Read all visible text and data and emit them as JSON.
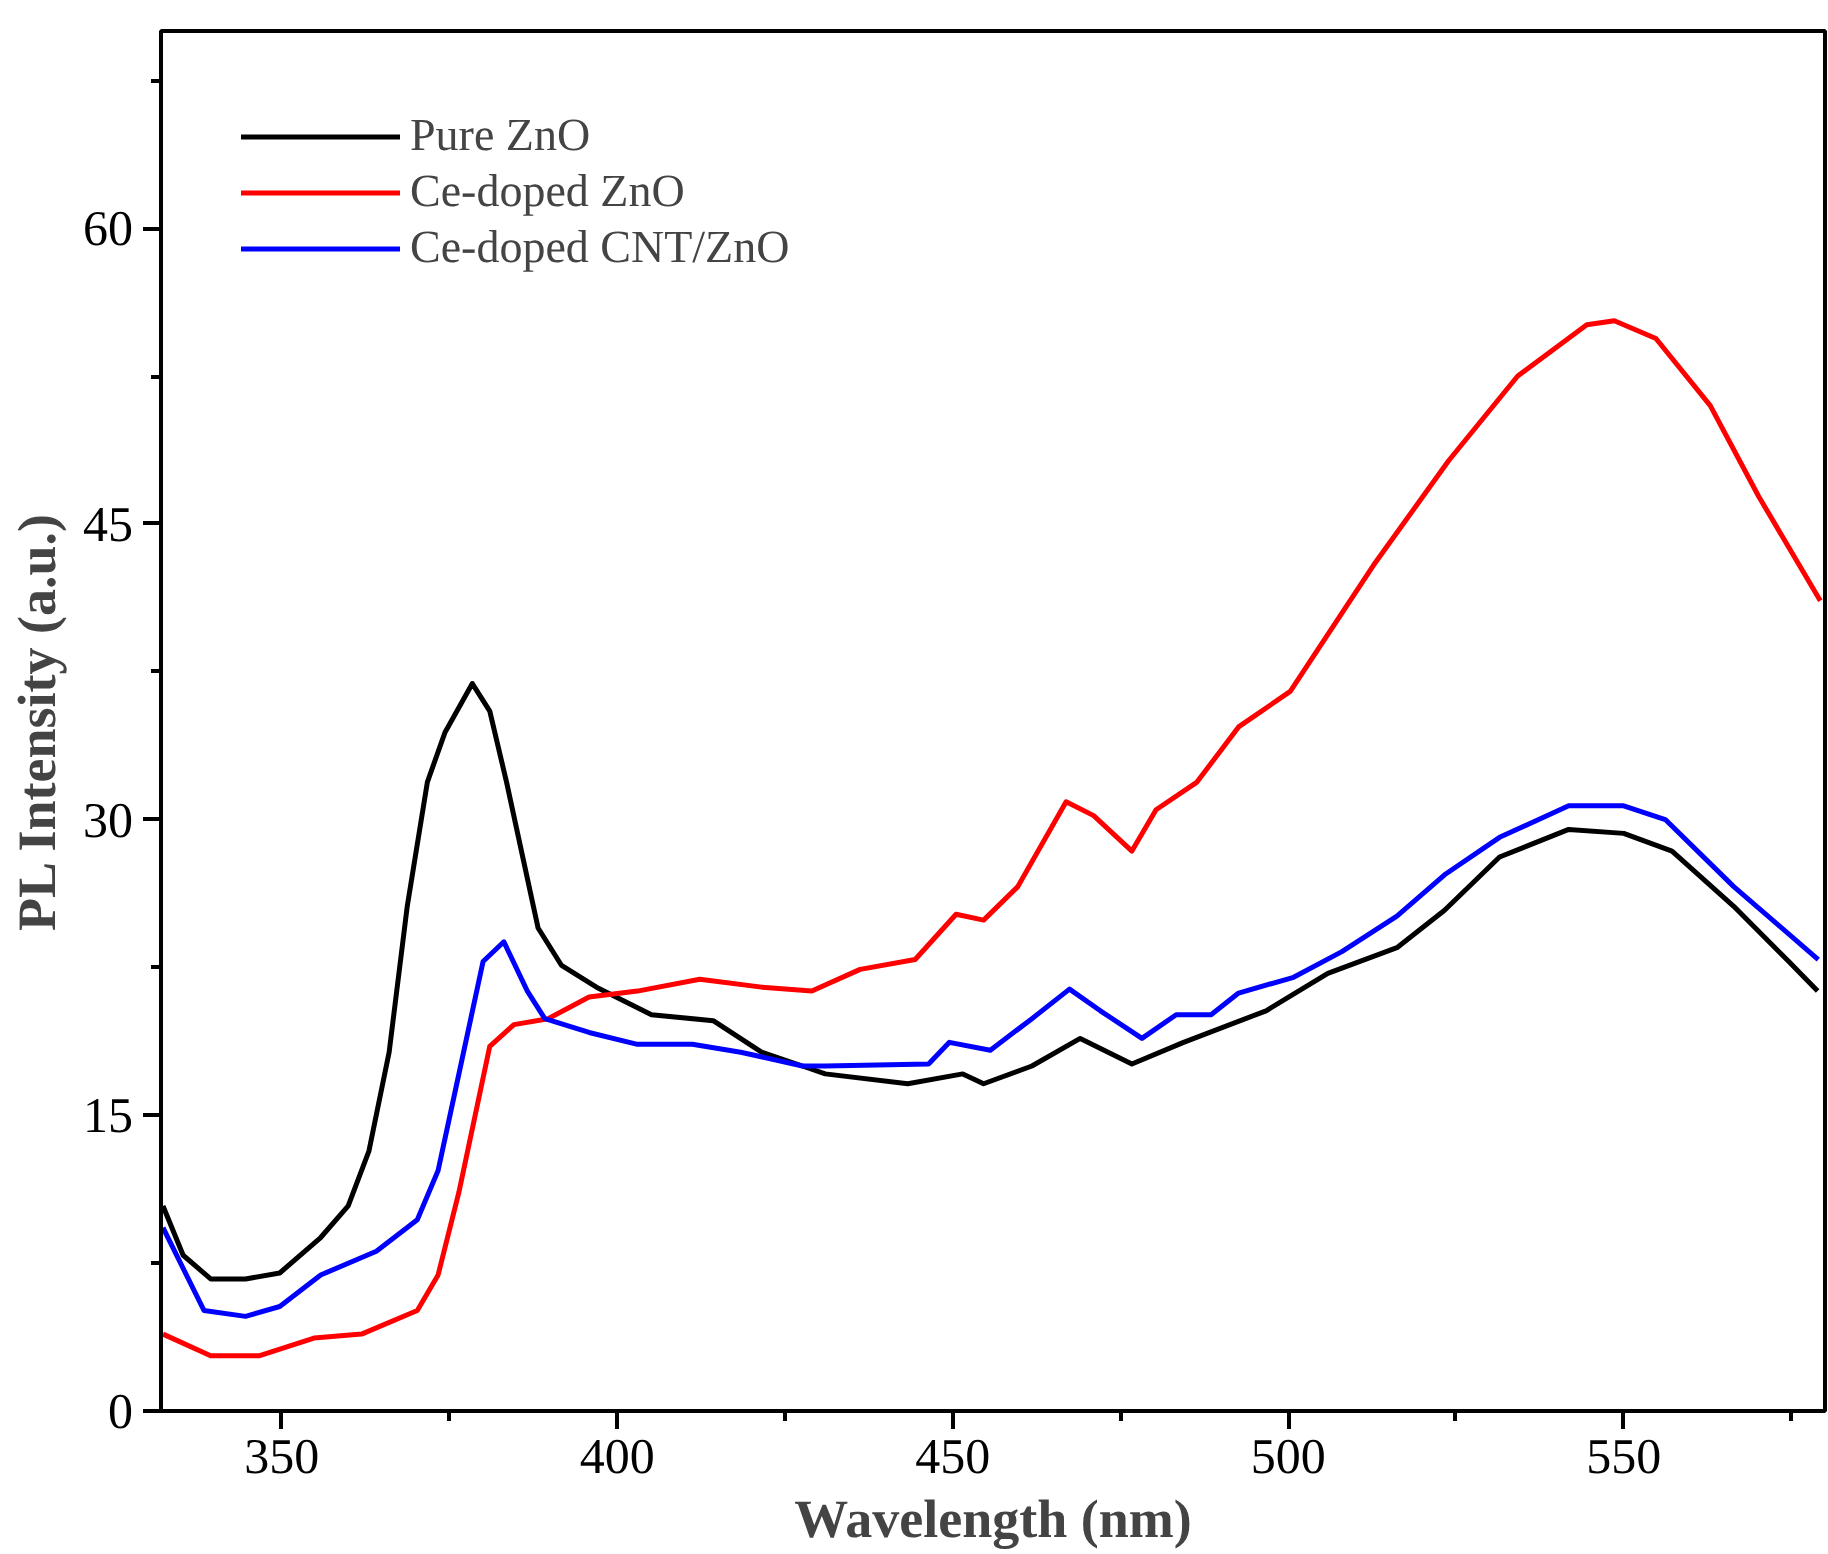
{
  "chart_data": {
    "type": "line",
    "xlabel": "Wavelength (nm)",
    "ylabel": "PL Intensity (a.u.)",
    "xlim": [
      332,
      580
    ],
    "ylim": [
      0,
      70
    ],
    "xticks": [
      350,
      400,
      450,
      500,
      550
    ],
    "yticks": [
      0,
      15,
      30,
      45,
      60
    ],
    "legend": "top left",
    "grid": false,
    "marker": "none",
    "line_style": "solid",
    "series": [
      {
        "name": "Pure ZnO",
        "color": "#000000",
        "x": [
          332.3,
          335.3,
          339.4,
          344.6,
          349.7,
          355.8,
          359.9,
          363,
          366,
          368.7,
          371.7,
          374.3,
          378.4,
          381,
          383.5,
          388.2,
          391.7,
          396.9,
          405.1,
          414.3,
          421.5,
          427.6,
          431,
          443.3,
          451.5,
          454.6,
          461.8,
          469,
          476.7,
          484.4,
          496.7,
          505.9,
          516.2,
          523.3,
          531.5,
          541.8,
          550,
          557.2,
          566.4,
          574.6,
          578.9
        ],
        "values": [
          10.4,
          7.9,
          6.7,
          6.7,
          7.0,
          8.8,
          10.4,
          13.2,
          18.2,
          25.6,
          31.9,
          34.4,
          36.9,
          35.5,
          31.9,
          24.5,
          22.6,
          21.5,
          20.1,
          19.8,
          18.2,
          17.5,
          17.1,
          16.6,
          17.1,
          16.6,
          17.5,
          18.9,
          17.6,
          18.7,
          20.3,
          22.2,
          23.5,
          25.4,
          28.1,
          29.5,
          29.3,
          28.4,
          25.6,
          22.8,
          21.3
        ]
      },
      {
        "name": "Ce-doped ZnO",
        "color": "#ff0000",
        "x": [
          332.3,
          339.4,
          346.6,
          354.8,
          361.9,
          370.2,
          373.3,
          376.4,
          381,
          384.6,
          389.7,
          395.8,
          403,
          412.3,
          421.5,
          429,
          436.2,
          444.4,
          450.5,
          454.6,
          459.7,
          466.9,
          471,
          476.7,
          480.3,
          486.4,
          492.6,
          500.3,
          512.7,
          523.9,
          534.2,
          544.5,
          548.6,
          554.8,
          562.9,
          570.1,
          579.3
        ],
        "values": [
          3.9,
          2.8,
          2.8,
          3.7,
          3.9,
          5.1,
          6.9,
          11.1,
          18.5,
          19.6,
          19.9,
          21.0,
          21.3,
          21.9,
          21.5,
          21.3,
          22.4,
          22.9,
          25.2,
          24.9,
          26.6,
          30.9,
          30.2,
          28.4,
          30.5,
          31.9,
          34.7,
          36.5,
          42.9,
          48.2,
          52.5,
          55.1,
          55.3,
          54.4,
          51.0,
          46.4,
          41.1
        ]
      },
      {
        "name": "Ce-doped CNT/ZnO",
        "color": "#0000ff",
        "x": [
          332.3,
          338.4,
          344.6,
          349.7,
          355.8,
          364.1,
          370.2,
          373.3,
          376.4,
          380,
          383.1,
          386.6,
          389.2,
          395.8,
          403,
          411.2,
          418.4,
          427.6,
          431,
          446.4,
          449.5,
          455.6,
          461.8,
          467.4,
          472,
          478.2,
          483.3,
          488.5,
          492.6,
          500.8,
          508,
          516.2,
          523.3,
          531.5,
          541.8,
          550,
          556.2,
          566.4,
          579
        ],
        "values": [
          9.3,
          5.1,
          4.8,
          5.3,
          6.9,
          8.1,
          9.7,
          12.2,
          17.1,
          22.8,
          23.8,
          21.3,
          19.9,
          19.2,
          18.6,
          18.6,
          18.2,
          17.5,
          17.5,
          17.6,
          18.7,
          18.3,
          19.9,
          21.4,
          20.3,
          18.9,
          20.1,
          20.1,
          21.2,
          22.0,
          23.3,
          25.1,
          27.2,
          29.1,
          30.7,
          30.7,
          30.0,
          26.6,
          22.9
        ]
      }
    ]
  }
}
